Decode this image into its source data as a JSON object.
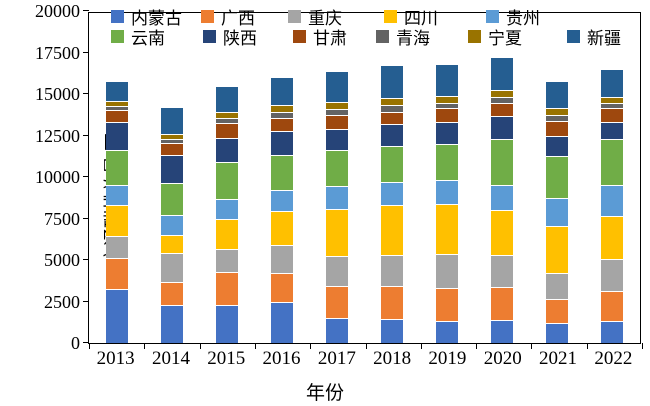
{
  "y_axis": {
    "title": "交通碳排放量/万t",
    "min": 0,
    "max": 20000,
    "step": 2500,
    "tick_labels": [
      "0",
      "2500",
      "5000",
      "7500",
      "10000",
      "12500",
      "15000",
      "17500",
      "20000"
    ]
  },
  "x_axis": {
    "title": "年份",
    "tick_labels": [
      "2013",
      "2014",
      "2015",
      "2016",
      "2017",
      "2018",
      "2019",
      "2020",
      "2021",
      "2022"
    ]
  },
  "legend": {
    "row1": [
      "内蒙古",
      "广西",
      "重庆",
      "四川",
      "贵州"
    ],
    "row2": [
      "云南",
      "陕西",
      "甘肃",
      "青海",
      "宁夏",
      "新疆"
    ]
  },
  "chart_data": {
    "type": "bar",
    "stacked": true,
    "title": "",
    "xlabel": "年份",
    "ylabel": "交通碳排放量/万t",
    "ylim": [
      0,
      20000
    ],
    "grid": false,
    "legend_position": "top-inside",
    "categories": [
      "2013",
      "2014",
      "2015",
      "2016",
      "2017",
      "2018",
      "2019",
      "2020",
      "2021",
      "2022"
    ],
    "series": [
      {
        "name": "内蒙古",
        "color": "#4472C4",
        "values": [
          3250,
          2300,
          2300,
          2500,
          1510,
          1450,
          1350,
          1410,
          1200,
          1350
        ]
      },
      {
        "name": "广西",
        "color": "#ED7D31",
        "values": [
          1850,
          1400,
          1970,
          1720,
          1920,
          2010,
          1960,
          1960,
          1460,
          1810
        ]
      },
      {
        "name": "重庆",
        "color": "#A5A5A5",
        "values": [
          1350,
          1700,
          1390,
          1660,
          1790,
          1860,
          2030,
          1910,
          1560,
          1920
        ]
      },
      {
        "name": "四川",
        "color": "#FFC000",
        "values": [
          1850,
          1080,
          1830,
          2060,
          2880,
          3020,
          3060,
          2720,
          2820,
          2570
        ]
      },
      {
        "name": "贵州",
        "color": "#5B9BD5",
        "values": [
          1250,
          1250,
          1210,
          1250,
          1370,
          1370,
          1420,
          1510,
          1720,
          1850
        ]
      },
      {
        "name": "云南",
        "color": "#70AD47",
        "values": [
          2050,
          1900,
          2220,
          2120,
          2150,
          2170,
          2150,
          2760,
          2490,
          2770
        ]
      },
      {
        "name": "陕西",
        "color": "#264478",
        "values": [
          1700,
          1700,
          1410,
          1460,
          1250,
          1290,
          1320,
          1400,
          1250,
          1060
        ]
      },
      {
        "name": "甘肃",
        "color": "#9E480E",
        "values": [
          750,
          700,
          940,
          810,
          860,
          770,
          850,
          780,
          900,
          850
        ]
      },
      {
        "name": "青海",
        "color": "#636363",
        "values": [
          250,
          250,
          280,
          310,
          360,
          400,
          340,
          400,
          320,
          310
        ]
      },
      {
        "name": "宁夏",
        "color": "#997300",
        "values": [
          300,
          330,
          400,
          450,
          450,
          450,
          420,
          410,
          460,
          320
        ]
      },
      {
        "name": "新疆",
        "color": "#255E91",
        "values": [
          1100,
          1530,
          1450,
          1650,
          1760,
          1910,
          1860,
          1900,
          1520,
          1640
        ]
      }
    ],
    "totals": [
      15700,
      14140,
      15400,
      15990,
      16300,
      16700,
      16760,
      17160,
      15700,
      16450
    ]
  }
}
